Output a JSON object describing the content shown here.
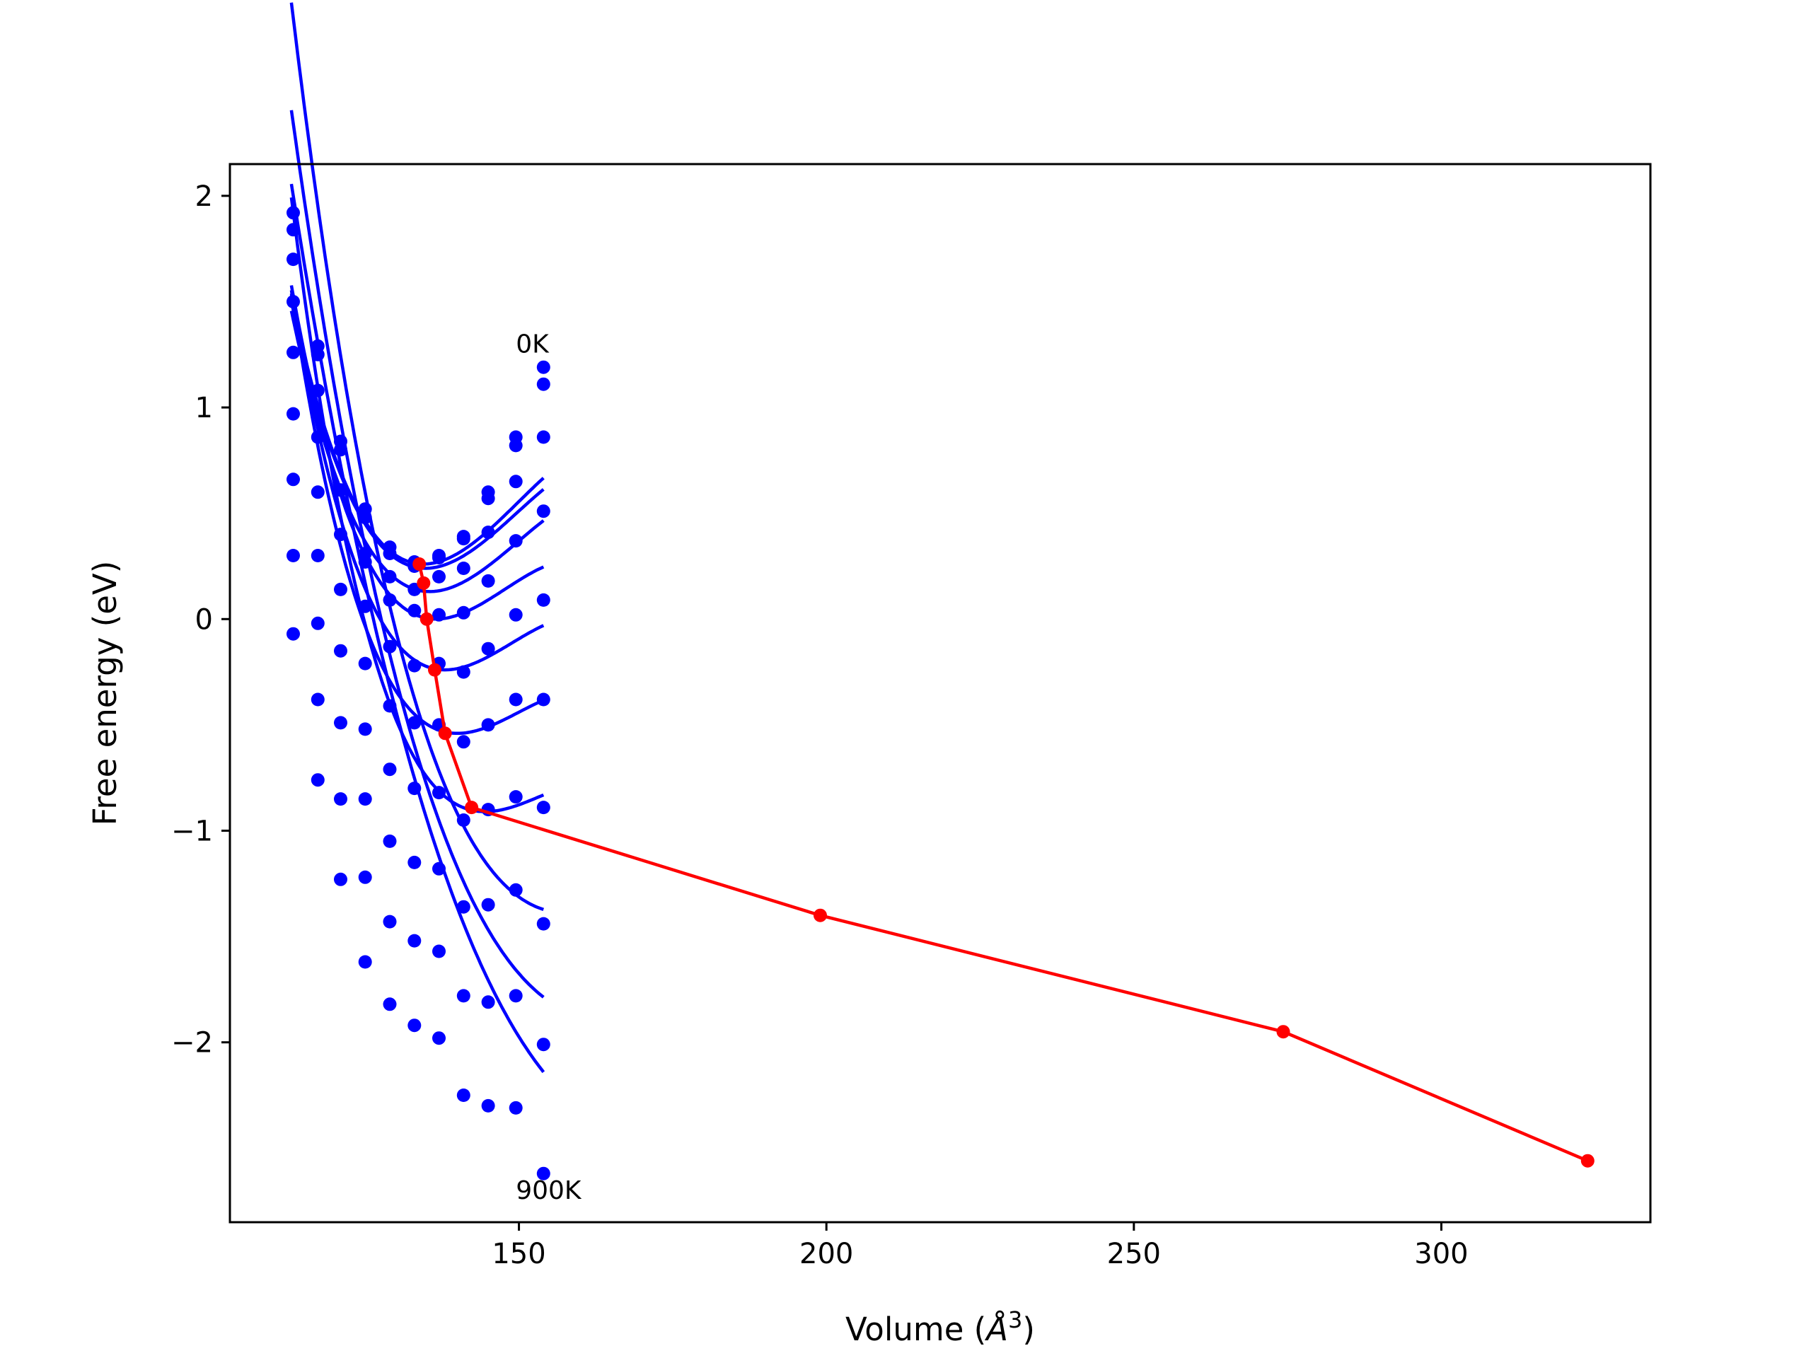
{
  "chart_data": {
    "type": "scatter",
    "xlabel_prefix": "Volume (",
    "xlabel_unit": "Å",
    "xlabel_exp": "3",
    "xlabel_suffix": ")",
    "ylabel": "Free energy (eV)",
    "xlim": [
      103,
      334
    ],
    "ylim": [
      -2.85,
      2.15
    ],
    "xticks": [
      150,
      200,
      250,
      300
    ],
    "xtick_labels": [
      "150",
      "200",
      "250",
      "300"
    ],
    "yticks": [
      2,
      1,
      0,
      -1,
      -2
    ],
    "ytick_labels": [
      "2",
      "1",
      "0",
      "−1",
      "−2"
    ],
    "annotations": [
      {
        "text": "0K",
        "x": 149.5,
        "y": 1.26
      },
      {
        "text": "900K",
        "x": 149.5,
        "y": -2.74
      }
    ],
    "grid": false,
    "legend": "none",
    "colors": {
      "isotherms": "#0000ff",
      "minimum_path": "#ff0000"
    },
    "x": [
      113.3,
      117.3,
      121.0,
      125.0,
      129.0,
      133.0,
      137.0,
      141.0,
      145.0,
      149.5,
      154.0
    ],
    "series": [
      {
        "values": [
          1.92,
          1.29,
          0.84,
          0.52,
          0.34,
          0.27,
          0.3,
          0.39,
          0.6,
          0.86,
          1.19
        ]
      },
      {
        "values": [
          1.84,
          1.25,
          0.8,
          0.48,
          0.31,
          0.25,
          0.29,
          0.38,
          0.57,
          0.82,
          1.11
        ]
      },
      {
        "values": [
          1.7,
          1.08,
          0.61,
          0.31,
          0.2,
          0.14,
          0.2,
          0.24,
          0.41,
          0.65,
          0.86
        ]
      },
      {
        "values": [
          1.5,
          0.86,
          0.4,
          0.27,
          0.09,
          0.04,
          0.02,
          0.03,
          0.18,
          0.37,
          0.51
        ]
      },
      {
        "values": [
          1.26,
          0.6,
          0.14,
          0.06,
          -0.13,
          -0.22,
          -0.21,
          -0.25,
          -0.14,
          0.02,
          0.09
        ]
      },
      {
        "values": [
          0.97,
          0.3,
          -0.15,
          -0.21,
          -0.41,
          -0.49,
          -0.5,
          -0.58,
          -0.5,
          -0.38,
          -0.38
        ]
      },
      {
        "values": [
          0.66,
          -0.02,
          -0.49,
          -0.52,
          -0.71,
          -0.8,
          -0.82,
          -0.95,
          -0.9,
          -0.84,
          -0.89
        ]
      },
      {
        "values": [
          0.3,
          -0.38,
          -0.85,
          -0.85,
          -1.05,
          -1.15,
          -1.18,
          -1.36,
          -1.35,
          -1.28,
          -1.44
        ]
      },
      {
        "values": [
          -0.07,
          -0.76,
          -1.23,
          -1.22,
          -1.43,
          -1.52,
          -1.57,
          -1.78,
          -1.81,
          -1.78,
          -2.01
        ]
      },
      {
        "values": [
          null,
          null,
          null,
          -1.62,
          -1.82,
          -1.92,
          -1.98,
          -2.25,
          -2.3,
          -2.31,
          -2.62
        ]
      }
    ],
    "fits": [
      {
        "v0": 134.5,
        "e0": 0.26,
        "a": 0.00185,
        "b": -4e-05
      },
      {
        "v0": 134.8,
        "e0": 0.24,
        "a": 0.00178,
        "b": -4e-05
      },
      {
        "v0": 135.5,
        "e0": 0.13,
        "a": 0.00172,
        "b": -4e-05
      },
      {
        "v0": 136.5,
        "e0": 0.0,
        "a": 0.00168,
        "b": -5e-05
      },
      {
        "v0": 138.0,
        "e0": -0.24,
        "a": 0.00162,
        "b": -5e-05
      },
      {
        "v0": 140.0,
        "e0": -0.54,
        "a": 0.0015,
        "b": -5e-05
      },
      {
        "v0": 144.5,
        "e0": -0.91,
        "a": 0.00135,
        "b": -5e-05
      },
      {
        "v0": 158.0,
        "e0": -1.39,
        "a": 0.001,
        "b": -2.5e-05
      },
      {
        "v0": 165.0,
        "e0": -1.9,
        "a": 0.00076,
        "b": -1.6e-05
      },
      {
        "v0": 175.0,
        "e0": -2.48,
        "a": 0.00056,
        "b": -1e-05
      }
    ],
    "fit_range": [
      113.0,
      154.0
    ],
    "minimum_path": {
      "x": [
        133.8,
        134.5,
        135.0,
        136.3,
        138.0,
        142.3,
        199.0,
        274.3,
        323.8
      ],
      "y": [
        0.26,
        0.17,
        0.0,
        -0.24,
        -0.54,
        -0.89,
        -1.4,
        -1.95,
        -2.56
      ]
    }
  }
}
